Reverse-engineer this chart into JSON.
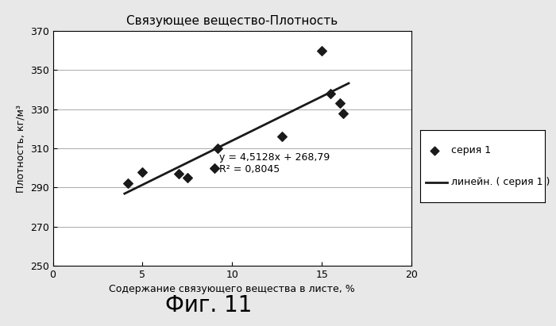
{
  "title": "Связующее вещество-Плотность",
  "xlabel": "Содержание связующего вещества в листе, %",
  "ylabel": "Плотность, кг/м³",
  "caption": "Фиг. 11",
  "scatter_x": [
    4.2,
    5.0,
    7.0,
    7.5,
    9.0,
    9.2,
    12.8,
    15.0,
    15.5,
    16.0,
    16.2
  ],
  "scatter_y": [
    292,
    298,
    297,
    295,
    300,
    310,
    316,
    360,
    338,
    333,
    328
  ],
  "slope": 4.5128,
  "intercept": 268.79,
  "line_x_start": 4.0,
  "line_x_end": 16.5,
  "xlim": [
    0,
    20
  ],
  "ylim": [
    250,
    370
  ],
  "xticks": [
    0,
    5,
    10,
    15,
    20
  ],
  "yticks": [
    250,
    270,
    290,
    310,
    330,
    350,
    370
  ],
  "equation_text": "y = 4,5128x + 268,79",
  "r2_text": "R² = 0,8045",
  "eq_x": 9.3,
  "eq_y": 308,
  "legend_series": "серия 1",
  "legend_line": "линейн. ( серия 1 )",
  "marker_color": "#1a1a1a",
  "line_color": "#1a1a1a",
  "bg_color": "#e8e8e8",
  "plot_bg": "#ffffff",
  "grid_color": "#888888",
  "title_fontsize": 11,
  "label_fontsize": 9,
  "tick_fontsize": 9,
  "legend_fontsize": 9,
  "caption_fontsize": 20,
  "eq_fontsize": 9
}
